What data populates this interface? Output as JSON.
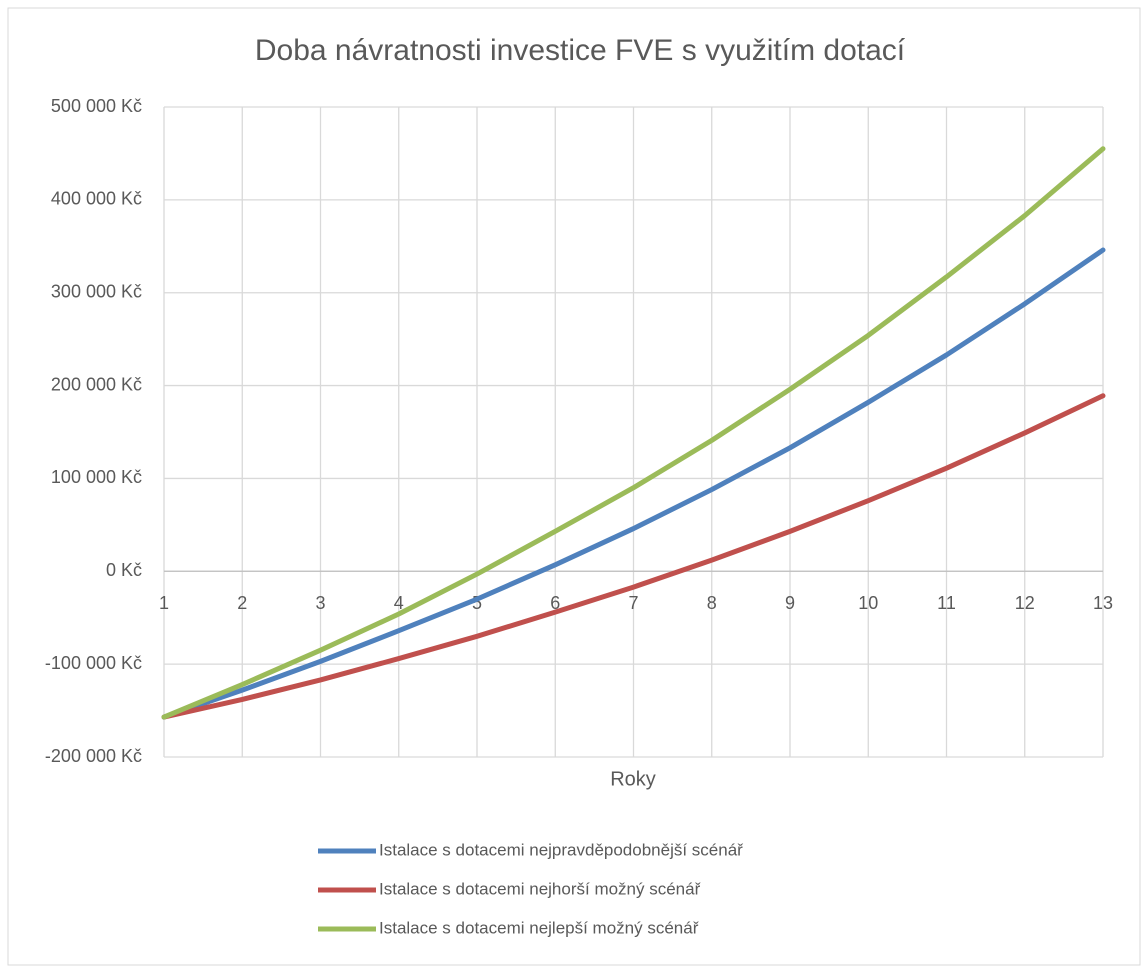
{
  "chart_data": {
    "type": "line",
    "title": "Doba návratnosti investice FVE s využitím dotací",
    "x_label": "Roky",
    "x": [
      1,
      2,
      3,
      4,
      5,
      6,
      7,
      8,
      9,
      10,
      11,
      12,
      13
    ],
    "xlim": [
      1,
      13
    ],
    "xticks": [
      1,
      2,
      3,
      4,
      5,
      6,
      7,
      8,
      9,
      10,
      11,
      12,
      13
    ],
    "ylim": [
      -200000,
      500000
    ],
    "yticks": [
      {
        "value": -200000,
        "label": "-200 000 Kč"
      },
      {
        "value": -100000,
        "label": "-100 000 Kč"
      },
      {
        "value": 0,
        "label": "0 Kč"
      },
      {
        "value": 100000,
        "label": "100 000 Kč"
      },
      {
        "value": 200000,
        "label": "200 000 Kč"
      },
      {
        "value": 300000,
        "label": "300 000 Kč"
      },
      {
        "value": 400000,
        "label": "400 000 Kč"
      },
      {
        "value": 500000,
        "label": "500 000 Kč"
      }
    ],
    "grid": true,
    "legend": "bottom",
    "series": [
      {
        "name": "Istalace s dotacemi nejpravděpodobnější scénář",
        "color": "#4f81bd",
        "values": [
          -157000,
          -128000,
          -97000,
          -64000,
          -30000,
          7000,
          46000,
          88000,
          133000,
          182000,
          233000,
          288000,
          346000
        ]
      },
      {
        "name": "Istalace s dotacemi nejhorší možný scénář",
        "color": "#c0504d",
        "values": [
          -157000,
          -138000,
          -117000,
          -94000,
          -70000,
          -44000,
          -17000,
          12000,
          43000,
          76000,
          111000,
          149000,
          189000
        ]
      },
      {
        "name": "Istalace s dotacemi nejlepší možný scénář",
        "color": "#9bbb59",
        "values": [
          -157000,
          -122000,
          -85000,
          -46000,
          -3000,
          43000,
          90000,
          141000,
          196000,
          254000,
          317000,
          383000,
          455000
        ]
      }
    ]
  }
}
